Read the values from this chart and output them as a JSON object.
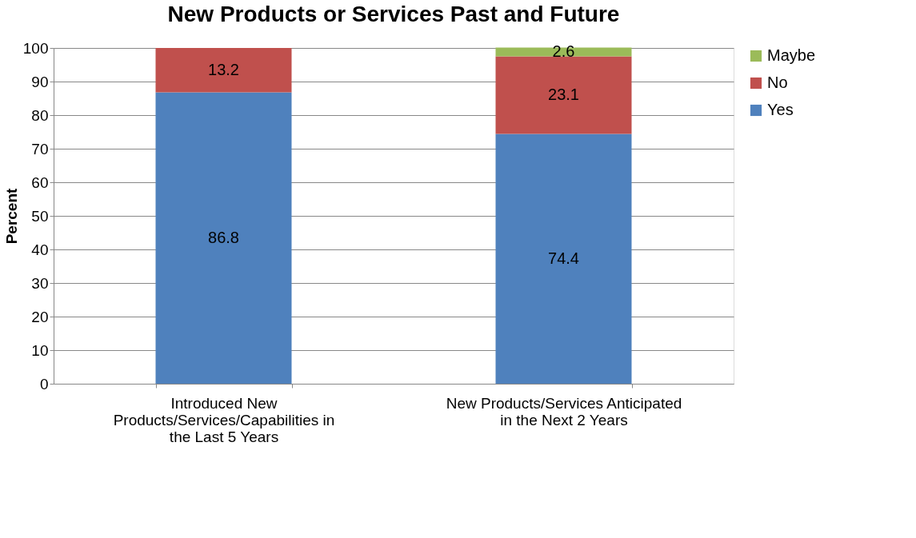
{
  "chart_data": {
    "type": "bar",
    "title": "New Products or Services Past and Future",
    "ylabel": "Percent",
    "categories": [
      "Introduced New Products/Services/Capabilities in the Last 5 Years",
      "New Products/Services Anticipated in the Next 2 Years"
    ],
    "stacked": true,
    "series": [
      {
        "name": "Yes",
        "color": "#4f81bd",
        "values": [
          86.8,
          74.4
        ]
      },
      {
        "name": "No",
        "color": "#c0504d",
        "values": [
          13.2,
          23.1
        ]
      },
      {
        "name": "Maybe",
        "color": "#9bbb59",
        "values": [
          null,
          2.6
        ]
      }
    ],
    "ylim": [
      0,
      100
    ],
    "yticks": [
      0,
      10,
      20,
      30,
      40,
      50,
      60,
      70,
      80,
      90,
      100
    ],
    "grid": "y",
    "legend": "right",
    "data_labels": true
  }
}
